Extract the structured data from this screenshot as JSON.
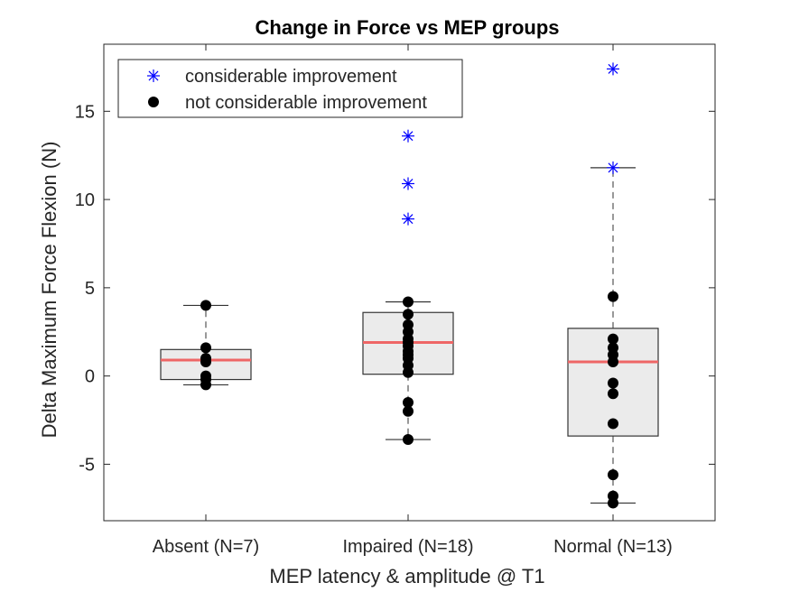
{
  "chart_data": {
    "type": "box",
    "title": "Change in Force vs MEP groups",
    "xlabel": "MEP latency & amplitude @ T1",
    "ylabel": "Delta Maximum Force Flexion (N)",
    "ylim": [
      -8.2,
      18.8
    ],
    "yticks": [
      15,
      10,
      5,
      0,
      -5
    ],
    "ytick_labels": [
      "15",
      "10",
      "5",
      "0",
      "-5"
    ],
    "categories": [
      "Absent (N=7)",
      "Impaired (N=18)",
      "Normal (N=13)"
    ],
    "boxes": [
      {
        "q1": -0.2,
        "median": 0.9,
        "q3": 1.5,
        "whisker_low": -0.5,
        "whisker_high": 4.0
      },
      {
        "q1": 0.1,
        "median": 1.9,
        "q3": 3.6,
        "whisker_low": -3.6,
        "whisker_high": 4.2
      },
      {
        "q1": -3.4,
        "median": 0.8,
        "q3": 2.7,
        "whisker_low": -7.2,
        "whisker_high": 11.8
      }
    ],
    "series": [
      {
        "name": "considerable improvement",
        "marker": "asterisk",
        "color": "#0000ff",
        "points": [
          {
            "group": 1,
            "values": [
              13.6,
              10.9,
              8.9
            ]
          },
          {
            "group": 2,
            "values": [
              17.4,
              11.8
            ]
          }
        ]
      },
      {
        "name": "not considerable improvement",
        "marker": "dot",
        "color": "#000000",
        "points": [
          {
            "group": 0,
            "values": [
              4.0,
              1.6,
              1.0,
              0.8,
              0.0,
              -0.2,
              -0.5
            ]
          },
          {
            "group": 1,
            "values": [
              4.2,
              3.5,
              2.9,
              2.5,
              2.1,
              1.7,
              1.4,
              1.0,
              0.6,
              0.2,
              -1.5,
              -2.0,
              -3.6,
              1.9,
              1.2
            ]
          },
          {
            "group": 2,
            "values": [
              4.5,
              2.1,
              1.6,
              1.2,
              0.8,
              -0.4,
              -1.0,
              -2.7,
              -5.6,
              -6.8,
              -7.2
            ]
          }
        ]
      }
    ],
    "median_color": "#ee6666",
    "box_fill": "#ebebeb",
    "legend_position": "top-left",
    "grid": false
  }
}
